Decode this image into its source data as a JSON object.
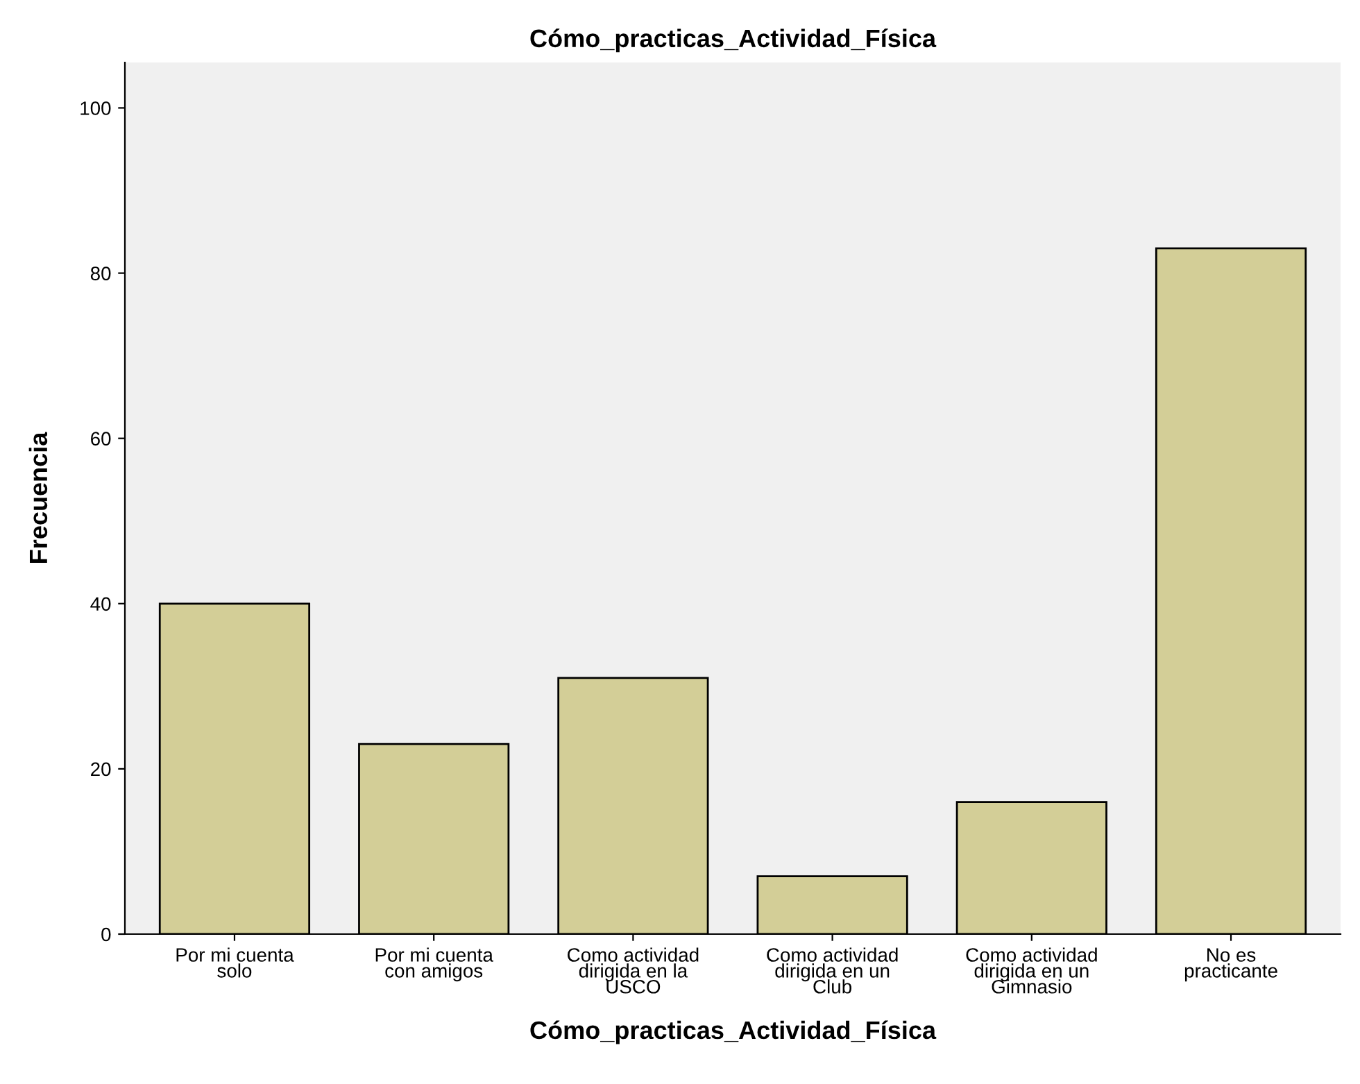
{
  "chart_data": {
    "type": "bar",
    "title": "Cómo_practicas_Actividad_Física",
    "xlabel": "Cómo_practicas_Actividad_Física",
    "ylabel": "Frecuencia",
    "categories": [
      "Por mi cuenta\nsolo",
      "Por mi cuenta\ncon amigos",
      "Como actividad\ndirigida en la\nUSCO",
      "Como actividad\ndirigida en un\nClub",
      "Como actividad\ndirigida en un\nGimnasio",
      "No es\npracticante"
    ],
    "values": [
      40,
      23,
      31,
      7,
      16,
      83
    ],
    "color": "#d3ce97",
    "ylim": [
      0,
      105.5
    ],
    "yticks": [
      0,
      20,
      40,
      60,
      80,
      100
    ],
    "grid": false,
    "legend": false
  }
}
